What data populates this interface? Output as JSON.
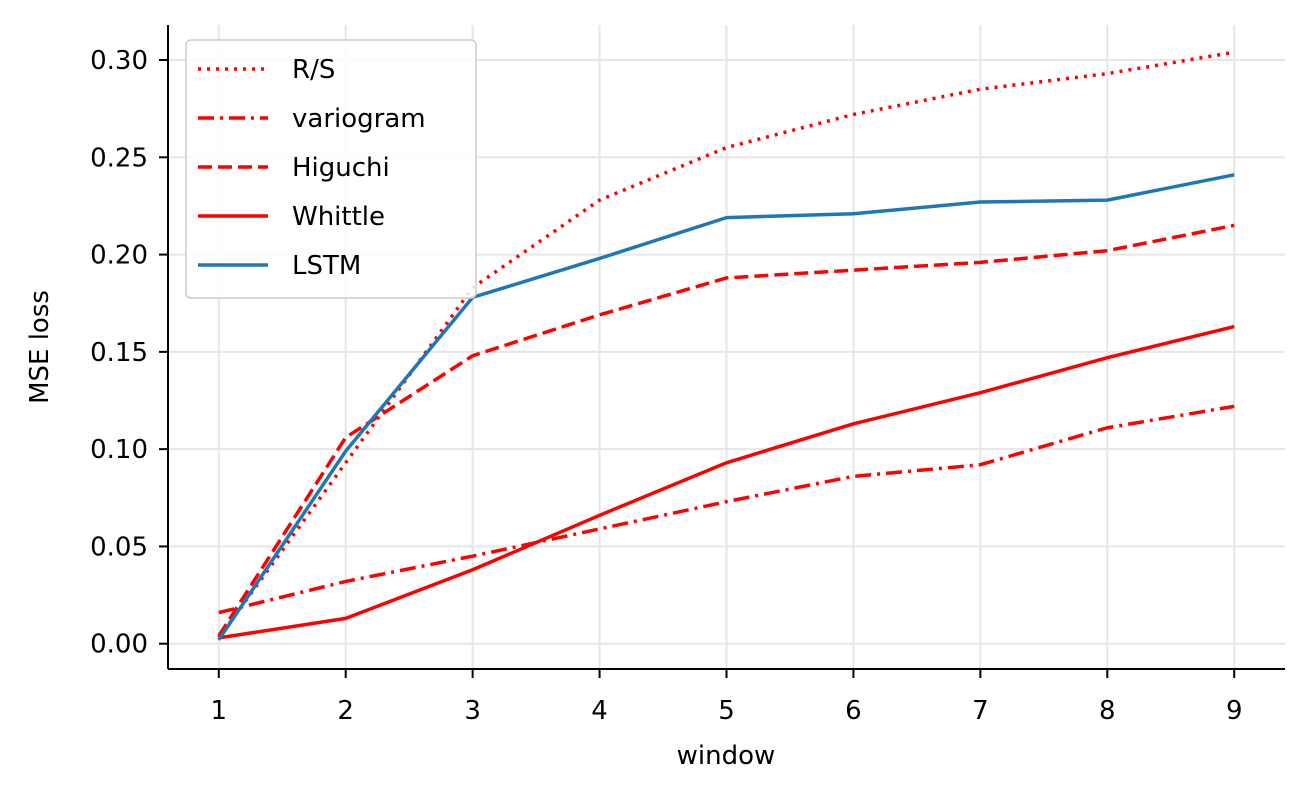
{
  "chart_data": {
    "type": "line",
    "title": "",
    "xlabel": "window",
    "ylabel": "MSE loss",
    "x": [
      1,
      2,
      3,
      4,
      5,
      6,
      7,
      8,
      9
    ],
    "xticks": [
      "1",
      "2",
      "3",
      "4",
      "5",
      "6",
      "7",
      "8",
      "9"
    ],
    "yticks": [
      "0.00",
      "0.05",
      "0.10",
      "0.15",
      "0.20",
      "0.25",
      "0.30"
    ],
    "ytick_values": [
      0.0,
      0.05,
      0.1,
      0.15,
      0.2,
      0.25,
      0.3
    ],
    "xlim": [
      0.6,
      9.4
    ],
    "ylim": [
      -0.013,
      0.318
    ],
    "grid": true,
    "legend_position": "top-left",
    "series": [
      {
        "name": "R/S",
        "color": "#ff0000",
        "style": "dotted",
        "values": [
          0.003,
          0.093,
          0.183,
          0.228,
          0.255,
          0.272,
          0.285,
          0.293,
          0.304
        ]
      },
      {
        "name": "variogram",
        "color": "#ff0000",
        "style": "dashdot",
        "values": [
          0.016,
          0.032,
          0.045,
          0.059,
          0.073,
          0.086,
          0.092,
          0.111,
          0.122
        ]
      },
      {
        "name": "Higuchi",
        "color": "#ff0000",
        "style": "dashed",
        "values": [
          0.004,
          0.106,
          0.148,
          0.169,
          0.188,
          0.192,
          0.196,
          0.202,
          0.215
        ]
      },
      {
        "name": "Whittle",
        "color": "#ff0000",
        "style": "solid",
        "values": [
          0.003,
          0.013,
          0.038,
          0.066,
          0.093,
          0.113,
          0.129,
          0.147,
          0.163
        ]
      },
      {
        "name": "LSTM",
        "color": "#1f77b4",
        "style": "solid",
        "values": [
          0.002,
          0.099,
          0.178,
          0.198,
          0.219,
          0.221,
          0.227,
          0.228,
          0.241
        ]
      }
    ]
  }
}
